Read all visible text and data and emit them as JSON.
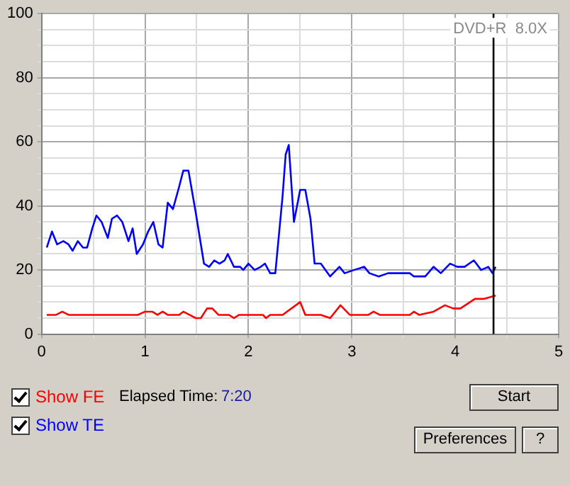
{
  "chart_data": {
    "type": "line",
    "annotations": [
      "DVD+R  8.0X",
      "Elapsed Time:",
      "7:20",
      "Start",
      "Preferences",
      "?"
    ],
    "xlim": [
      0,
      5
    ],
    "xticks": [
      0,
      {
        "value": 0.5,
        "label": null
      },
      1,
      {
        "value": 1.5,
        "label": null
      },
      2,
      {
        "value": 2.5,
        "label": null
      },
      3,
      {
        "value": 3.5,
        "label": null
      },
      4,
      {
        "value": 4.5,
        "label": null
      },
      5
    ],
    "ylim": [
      0,
      100
    ],
    "yticks": [
      0,
      {
        "value": 5,
        "label": null
      },
      {
        "value": 10,
        "label": null
      },
      {
        "value": 15,
        "label": null
      },
      20,
      {
        "value": 25,
        "label": null
      },
      {
        "value": 30,
        "label": null
      },
      {
        "value": 35,
        "label": null
      },
      40,
      {
        "value": 45,
        "label": null
      },
      {
        "value": 50,
        "label": null
      },
      {
        "value": 55,
        "label": null
      },
      60,
      {
        "value": 65,
        "label": null
      },
      {
        "value": 70,
        "label": null
      },
      {
        "value": 75,
        "label": null
      },
      80,
      {
        "value": 85,
        "label": null
      },
      {
        "value": 90,
        "label": null
      },
      {
        "value": 95,
        "label": null
      },
      100
    ],
    "grid": true,
    "legend": "bottom left",
    "marker": "none",
    "line_style": "solid",
    "ref_lines": [
      {
        "axis": "x",
        "value": 4.37,
        "color": "#000000"
      }
    ],
    "series": [
      {
        "name": "Show FE",
        "color": "#ff0000",
        "x": [
          0.05,
          0.14,
          0.2,
          0.26,
          0.93,
          1.0,
          1.07,
          1.12,
          1.17,
          1.22,
          1.33,
          1.37,
          1.43,
          1.49,
          1.54,
          1.6,
          1.65,
          1.71,
          1.81,
          1.86,
          1.91,
          2.14,
          2.17,
          2.21,
          2.33,
          2.5,
          2.55,
          2.7,
          2.79,
          2.89,
          2.98,
          3.16,
          3.21,
          3.27,
          3.56,
          3.6,
          3.65,
          3.79,
          3.9,
          3.98,
          4.05,
          4.19,
          4.28,
          4.39
        ],
        "values": [
          6,
          6,
          7,
          6,
          6,
          7,
          7,
          6,
          7,
          6,
          6,
          7,
          6,
          5,
          5,
          8,
          8,
          6,
          6,
          5,
          6,
          6,
          5,
          6,
          6,
          10,
          6,
          6,
          5,
          9,
          6,
          6,
          7,
          6,
          6,
          7,
          6,
          7,
          9,
          8,
          8,
          11,
          11,
          12
        ]
      },
      {
        "name": "Show TE",
        "color": "#0000ff",
        "x": [
          0.05,
          0.1,
          0.15,
          0.21,
          0.26,
          0.3,
          0.35,
          0.4,
          0.44,
          0.49,
          0.53,
          0.58,
          0.64,
          0.68,
          0.73,
          0.78,
          0.84,
          0.88,
          0.92,
          0.98,
          1.03,
          1.08,
          1.13,
          1.17,
          1.22,
          1.27,
          1.33,
          1.37,
          1.42,
          1.49,
          1.57,
          1.62,
          1.67,
          1.72,
          1.77,
          1.8,
          1.86,
          1.92,
          1.95,
          2.0,
          2.06,
          2.12,
          2.16,
          2.21,
          2.26,
          2.33,
          2.36,
          2.39,
          2.44,
          2.5,
          2.55,
          2.6,
          2.64,
          2.7,
          2.79,
          2.88,
          2.93,
          3.02,
          3.12,
          3.17,
          3.26,
          3.35,
          3.46,
          3.56,
          3.6,
          3.71,
          3.79,
          3.86,
          3.95,
          4.02,
          4.09,
          4.18,
          4.25,
          4.32,
          4.36,
          4.39
        ],
        "values": [
          27,
          32,
          28,
          29,
          28,
          26,
          29,
          27,
          27,
          33,
          37,
          35,
          30,
          36,
          37,
          35,
          29,
          33,
          25,
          28,
          32,
          35,
          28,
          27,
          41,
          39,
          46,
          51,
          51,
          38,
          22,
          21,
          23,
          22,
          23,
          25,
          21,
          21,
          20,
          22,
          20,
          21,
          22,
          19,
          19,
          43,
          56,
          59,
          35,
          45,
          45,
          36,
          22,
          22,
          18,
          21,
          19,
          20,
          21,
          19,
          18,
          19,
          19,
          19,
          18,
          18,
          21,
          19,
          22,
          21,
          21,
          23,
          20,
          21,
          19,
          21
        ]
      }
    ]
  }
}
